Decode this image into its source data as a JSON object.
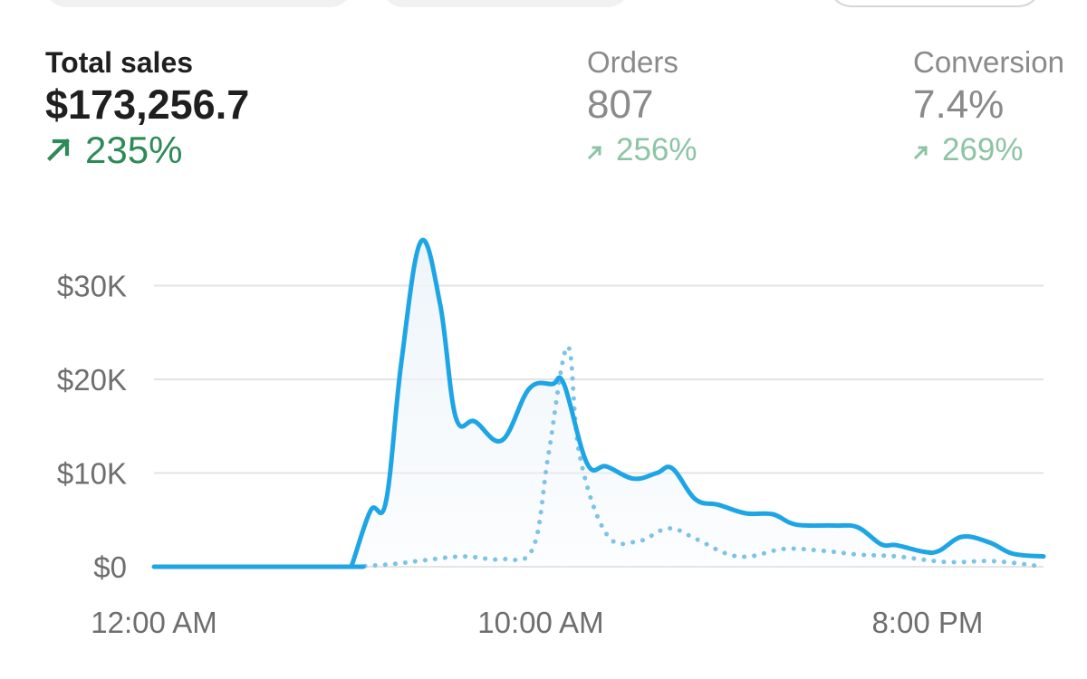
{
  "metrics": {
    "total_sales": {
      "label": "Total sales",
      "value": "$173,256.7",
      "change": "235%"
    },
    "orders": {
      "label": "Orders",
      "value": "807",
      "change": "256%"
    },
    "conversion": {
      "label": "Conversion",
      "value": "7.4%",
      "change": "269%"
    }
  },
  "colors": {
    "primary_text": "#1f1f1f",
    "muted_text": "#8a8a8a",
    "positive": "#2e8a57",
    "positive_muted": "#8cc4a3",
    "series_line": "#1ea5e6",
    "series_fill": "#eef5fa",
    "grid": "#e3e3e3"
  },
  "icons": {
    "change_arrow": "arrow-up-right-icon"
  },
  "chart_data": {
    "type": "line",
    "title": "",
    "xlabel": "",
    "ylabel": "",
    "x_range_hours": [
      0,
      23
    ],
    "ylim": [
      0,
      36000
    ],
    "y_ticks": [
      {
        "value": 0,
        "label": "$0"
      },
      {
        "value": 10000,
        "label": "$10K"
      },
      {
        "value": 20000,
        "label": "$20K"
      },
      {
        "value": 30000,
        "label": "$30K"
      }
    ],
    "x_ticks": [
      {
        "hour": 0,
        "label": "12:00 AM"
      },
      {
        "hour": 10,
        "label": "10:00 AM"
      },
      {
        "hour": 20,
        "label": "8:00 PM"
      }
    ],
    "grid": true,
    "series": [
      {
        "style": "solid",
        "points": [
          [
            0,
            0
          ],
          [
            5,
            0
          ],
          [
            5.1,
            0
          ],
          [
            5.6,
            6000
          ],
          [
            6.0,
            7000
          ],
          [
            6.4,
            22000
          ],
          [
            6.9,
            34700
          ],
          [
            7.4,
            28000
          ],
          [
            7.8,
            16000
          ],
          [
            8.3,
            15500
          ],
          [
            9.0,
            13500
          ],
          [
            9.7,
            19000
          ],
          [
            10.3,
            19500
          ],
          [
            10.6,
            19500
          ],
          [
            11.2,
            11000
          ],
          [
            11.7,
            10700
          ],
          [
            12.4,
            9400
          ],
          [
            13.0,
            10000
          ],
          [
            13.4,
            10500
          ],
          [
            14.0,
            7200
          ],
          [
            14.6,
            6600
          ],
          [
            15.3,
            5700
          ],
          [
            16.0,
            5600
          ],
          [
            16.6,
            4500
          ],
          [
            17.6,
            4400
          ],
          [
            18.2,
            4200
          ],
          [
            18.8,
            2400
          ],
          [
            19.2,
            2300
          ],
          [
            19.9,
            1600
          ],
          [
            20.3,
            1700
          ],
          [
            20.9,
            3200
          ],
          [
            21.6,
            2600
          ],
          [
            22.2,
            1400
          ],
          [
            23,
            1100
          ]
        ]
      },
      {
        "style": "dotted",
        "points": [
          [
            5.2,
            0
          ],
          [
            6.2,
            300
          ],
          [
            7.0,
            700
          ],
          [
            8.0,
            1100
          ],
          [
            9.0,
            800
          ],
          [
            9.8,
            2000
          ],
          [
            10.2,
            12000
          ],
          [
            10.7,
            23500
          ],
          [
            11.0,
            12000
          ],
          [
            11.7,
            3500
          ],
          [
            12.5,
            2700
          ],
          [
            13.3,
            4100
          ],
          [
            14.0,
            3000
          ],
          [
            14.8,
            1400
          ],
          [
            15.4,
            1100
          ],
          [
            16.3,
            1900
          ],
          [
            17.3,
            1700
          ],
          [
            18.2,
            1300
          ],
          [
            19.2,
            1100
          ],
          [
            20.5,
            500
          ],
          [
            21.7,
            600
          ],
          [
            23,
            0
          ]
        ]
      }
    ]
  }
}
